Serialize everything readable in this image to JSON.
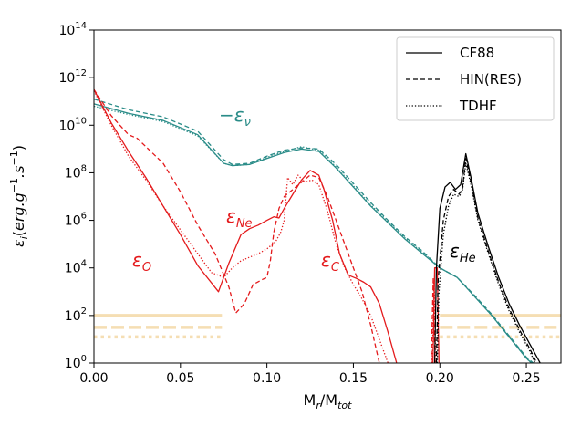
{
  "chart_data": {
    "type": "line",
    "xlabel": "M_r/M_tot",
    "ylabel": "ε_i(erg.g^-1.s^-1)",
    "xlim": [
      0.0,
      0.27
    ],
    "ylim_log10": [
      0,
      14
    ],
    "xticks": [
      0.0,
      0.05,
      0.1,
      0.15,
      0.2,
      0.25
    ],
    "xtick_labels": [
      "0.00",
      "0.05",
      "0.10",
      "0.15",
      "0.20",
      "0.25"
    ],
    "yticks_log10": [
      0,
      2,
      4,
      6,
      8,
      10,
      12,
      14
    ],
    "ytick_base": "10",
    "ytick_exponents": [
      "0",
      "2",
      "4",
      "6",
      "8",
      "10",
      "12",
      "14"
    ],
    "legend": {
      "position": "upper-right",
      "entries": [
        {
          "label": "CF88",
          "style": "solid"
        },
        {
          "label": "HIN(RES)",
          "style": "dashed"
        },
        {
          "label": "TDHF",
          "style": "dotted"
        }
      ]
    },
    "colors": {
      "neutrino": "#2a8c88",
      "oxygen": "#e41a1c",
      "neon": "#e41a1c",
      "carbon": "#e41a1c",
      "helium": "#000000",
      "threshold": "#f5deb3"
    },
    "annotations": [
      {
        "id": "nu",
        "label": "−ε",
        "sub": "ν",
        "color": "#2a8c88"
      },
      {
        "id": "ne",
        "label": "ε",
        "sub": "Ne",
        "color": "#e41a1c"
      },
      {
        "id": "o",
        "label": "ε",
        "sub": "O",
        "color": "#e41a1c"
      },
      {
        "id": "c",
        "label": "ε",
        "sub": "C",
        "color": "#e41a1c"
      },
      {
        "id": "he",
        "label": "ε",
        "sub": "He",
        "color": "#000000"
      }
    ],
    "thresholds": [
      {
        "style": "solid",
        "log10_y": 2.0,
        "segments": [
          [
            0.0,
            0.074
          ],
          [
            0.2,
            0.27
          ]
        ]
      },
      {
        "style": "dashed",
        "log10_y": 1.5,
        "segments": [
          [
            0.0,
            0.074
          ],
          [
            0.2,
            0.27
          ]
        ]
      },
      {
        "style": "dotted",
        "log10_y": 1.1,
        "segments": [
          [
            0.0,
            0.074
          ],
          [
            0.2,
            0.27
          ]
        ]
      }
    ],
    "series": [
      {
        "name": "neutrino CF88",
        "group": "neutrino",
        "style": "solid",
        "points": [
          [
            0,
            10.9
          ],
          [
            0.02,
            10.5
          ],
          [
            0.04,
            10.2
          ],
          [
            0.06,
            9.6
          ],
          [
            0.075,
            8.4
          ],
          [
            0.08,
            8.3
          ],
          [
            0.09,
            8.35
          ],
          [
            0.1,
            8.6
          ],
          [
            0.11,
            8.85
          ],
          [
            0.12,
            9.0
          ],
          [
            0.13,
            8.9
          ],
          [
            0.14,
            8.2
          ],
          [
            0.15,
            7.4
          ],
          [
            0.16,
            6.6
          ],
          [
            0.17,
            5.9
          ],
          [
            0.18,
            5.2
          ],
          [
            0.19,
            4.6
          ],
          [
            0.2,
            4.0
          ],
          [
            0.21,
            3.6
          ],
          [
            0.22,
            2.8
          ],
          [
            0.23,
            2.0
          ],
          [
            0.24,
            1.1
          ],
          [
            0.25,
            0.2
          ],
          [
            0.253,
            0.0
          ]
        ]
      },
      {
        "name": "neutrino HIN(RES)",
        "group": "neutrino",
        "style": "dashed",
        "points": [
          [
            0,
            11.1
          ],
          [
            0.02,
            10.65
          ],
          [
            0.04,
            10.35
          ],
          [
            0.06,
            9.75
          ],
          [
            0.075,
            8.55
          ],
          [
            0.08,
            8.35
          ],
          [
            0.09,
            8.4
          ],
          [
            0.1,
            8.7
          ],
          [
            0.11,
            8.95
          ],
          [
            0.12,
            9.05
          ],
          [
            0.13,
            9.0
          ],
          [
            0.14,
            8.35
          ],
          [
            0.15,
            7.55
          ],
          [
            0.16,
            6.75
          ],
          [
            0.17,
            6.0
          ],
          [
            0.18,
            5.3
          ],
          [
            0.19,
            4.7
          ],
          [
            0.2,
            4.0
          ],
          [
            0.21,
            3.6
          ],
          [
            0.22,
            2.85
          ],
          [
            0.23,
            2.05
          ],
          [
            0.24,
            1.15
          ],
          [
            0.25,
            0.25
          ],
          [
            0.254,
            0.0
          ]
        ]
      },
      {
        "name": "neutrino TDHF",
        "group": "neutrino",
        "style": "dotted",
        "points": [
          [
            0,
            10.8
          ],
          [
            0.02,
            10.45
          ],
          [
            0.04,
            10.15
          ],
          [
            0.06,
            9.55
          ],
          [
            0.075,
            8.4
          ],
          [
            0.08,
            8.3
          ],
          [
            0.09,
            8.35
          ],
          [
            0.1,
            8.65
          ],
          [
            0.11,
            8.9
          ],
          [
            0.12,
            9.1
          ],
          [
            0.13,
            8.95
          ],
          [
            0.14,
            8.25
          ],
          [
            0.15,
            7.45
          ],
          [
            0.16,
            6.65
          ],
          [
            0.17,
            5.95
          ],
          [
            0.18,
            5.25
          ],
          [
            0.19,
            4.65
          ],
          [
            0.2,
            4.0
          ],
          [
            0.21,
            3.6
          ],
          [
            0.22,
            2.8
          ],
          [
            0.23,
            2.0
          ],
          [
            0.24,
            1.1
          ],
          [
            0.25,
            0.2
          ],
          [
            0.253,
            0.0
          ]
        ]
      },
      {
        "name": "O/Ne/C CF88",
        "group": "burning",
        "style": "solid",
        "points": [
          [
            0,
            11.5
          ],
          [
            0.01,
            10.1
          ],
          [
            0.02,
            8.9
          ],
          [
            0.03,
            7.8
          ],
          [
            0.04,
            6.6
          ],
          [
            0.05,
            5.4
          ],
          [
            0.06,
            4.1
          ],
          [
            0.072,
            3.0
          ],
          [
            0.078,
            4.2
          ],
          [
            0.085,
            5.4
          ],
          [
            0.09,
            5.65
          ],
          [
            0.095,
            5.8
          ],
          [
            0.1,
            6.0
          ],
          [
            0.104,
            6.15
          ],
          [
            0.107,
            6.1
          ],
          [
            0.11,
            6.5
          ],
          [
            0.115,
            7.1
          ],
          [
            0.12,
            7.7
          ],
          [
            0.125,
            8.1
          ],
          [
            0.13,
            7.9
          ],
          [
            0.133,
            7.3
          ],
          [
            0.138,
            6.0
          ],
          [
            0.142,
            4.6
          ],
          [
            0.147,
            3.7
          ],
          [
            0.152,
            3.55
          ],
          [
            0.156,
            3.4
          ],
          [
            0.16,
            3.2
          ],
          [
            0.165,
            2.5
          ],
          [
            0.17,
            1.3
          ],
          [
            0.175,
            0.0
          ]
        ]
      },
      {
        "name": "O/Ne/C HIN(RES)",
        "group": "burning",
        "style": "dashed",
        "points": [
          [
            0,
            11.5
          ],
          [
            0.01,
            10.4
          ],
          [
            0.02,
            9.6
          ],
          [
            0.025,
            9.45
          ],
          [
            0.03,
            9.1
          ],
          [
            0.04,
            8.4
          ],
          [
            0.05,
            7.2
          ],
          [
            0.06,
            5.8
          ],
          [
            0.07,
            4.6
          ],
          [
            0.074,
            3.9
          ],
          [
            0.078,
            3.2
          ],
          [
            0.082,
            2.1
          ],
          [
            0.087,
            2.5
          ],
          [
            0.092,
            3.3
          ],
          [
            0.097,
            3.5
          ],
          [
            0.1,
            3.6
          ],
          [
            0.102,
            4.3
          ],
          [
            0.104,
            5.5
          ],
          [
            0.107,
            6.5
          ],
          [
            0.11,
            7.0
          ],
          [
            0.115,
            7.3
          ],
          [
            0.12,
            7.6
          ],
          [
            0.125,
            7.9
          ],
          [
            0.13,
            7.8
          ],
          [
            0.135,
            7.0
          ],
          [
            0.14,
            6.0
          ],
          [
            0.145,
            5.0
          ],
          [
            0.15,
            4.0
          ],
          [
            0.155,
            3.0
          ],
          [
            0.16,
            1.6
          ],
          [
            0.165,
            0.0
          ]
        ]
      },
      {
        "name": "O/Ne/C TDHF",
        "group": "burning",
        "style": "dotted",
        "points": [
          [
            0,
            11.45
          ],
          [
            0.01,
            10.0
          ],
          [
            0.02,
            8.7
          ],
          [
            0.03,
            7.7
          ],
          [
            0.04,
            6.6
          ],
          [
            0.05,
            5.6
          ],
          [
            0.06,
            4.6
          ],
          [
            0.068,
            3.8
          ],
          [
            0.075,
            3.6
          ],
          [
            0.08,
            4.0
          ],
          [
            0.085,
            4.3
          ],
          [
            0.09,
            4.45
          ],
          [
            0.095,
            4.6
          ],
          [
            0.1,
            4.8
          ],
          [
            0.105,
            5.1
          ],
          [
            0.108,
            5.5
          ],
          [
            0.11,
            6.0
          ],
          [
            0.112,
            7.8
          ],
          [
            0.115,
            7.5
          ],
          [
            0.118,
            7.9
          ],
          [
            0.122,
            7.6
          ],
          [
            0.126,
            7.7
          ],
          [
            0.13,
            7.5
          ],
          [
            0.135,
            6.4
          ],
          [
            0.14,
            5.0
          ],
          [
            0.145,
            4.0
          ],
          [
            0.15,
            3.3
          ],
          [
            0.155,
            2.7
          ],
          [
            0.16,
            2.0
          ],
          [
            0.165,
            1.0
          ],
          [
            0.17,
            0.0
          ]
        ]
      },
      {
        "name": "C spike CF88",
        "group": "burning",
        "style": "solid",
        "points": [
          [
            0.196,
            0.0
          ],
          [
            0.197,
            4.0
          ],
          [
            0.1985,
            4.0
          ],
          [
            0.1995,
            0.0
          ]
        ]
      },
      {
        "name": "C spike HIN(RES)",
        "group": "burning",
        "style": "dashed",
        "points": [
          [
            0.195,
            0.0
          ],
          [
            0.1962,
            3.6
          ],
          [
            0.1972,
            0.0
          ]
        ]
      },
      {
        "name": "C spike TDHF",
        "group": "burning",
        "style": "dotted",
        "points": [
          [
            0.1955,
            0.0
          ],
          [
            0.1967,
            3.4
          ],
          [
            0.1978,
            0.0
          ]
        ]
      },
      {
        "name": "He CF88",
        "group": "helium",
        "style": "solid",
        "points": [
          [
            0.197,
            0.0
          ],
          [
            0.198,
            4.0
          ],
          [
            0.2,
            6.5
          ],
          [
            0.203,
            7.4
          ],
          [
            0.206,
            7.6
          ],
          [
            0.209,
            7.3
          ],
          [
            0.212,
            7.5
          ],
          [
            0.215,
            8.8
          ],
          [
            0.218,
            7.8
          ],
          [
            0.222,
            6.3
          ],
          [
            0.228,
            4.9
          ],
          [
            0.234,
            3.6
          ],
          [
            0.24,
            2.5
          ],
          [
            0.246,
            1.6
          ],
          [
            0.252,
            0.8
          ],
          [
            0.258,
            0.0
          ]
        ]
      },
      {
        "name": "He HIN(RES)",
        "group": "helium",
        "style": "dashed",
        "points": [
          [
            0.198,
            0.0
          ],
          [
            0.199,
            3.5
          ],
          [
            0.202,
            6.0
          ],
          [
            0.205,
            7.0
          ],
          [
            0.208,
            7.3
          ],
          [
            0.211,
            7.1
          ],
          [
            0.213,
            7.3
          ],
          [
            0.215,
            8.6
          ],
          [
            0.218,
            7.6
          ],
          [
            0.222,
            6.1
          ],
          [
            0.228,
            4.7
          ],
          [
            0.234,
            3.4
          ],
          [
            0.24,
            2.3
          ],
          [
            0.246,
            1.4
          ],
          [
            0.252,
            0.6
          ],
          [
            0.256,
            0.0
          ]
        ]
      },
      {
        "name": "He TDHF",
        "group": "helium",
        "style": "dotted",
        "points": [
          [
            0.1985,
            0.0
          ],
          [
            0.1995,
            3.0
          ],
          [
            0.202,
            5.4
          ],
          [
            0.205,
            6.6
          ],
          [
            0.208,
            7.1
          ],
          [
            0.211,
            7.0
          ],
          [
            0.213,
            7.2
          ],
          [
            0.215,
            8.4
          ],
          [
            0.218,
            7.5
          ],
          [
            0.222,
            6.0
          ],
          [
            0.228,
            4.6
          ],
          [
            0.234,
            3.3
          ],
          [
            0.24,
            2.2
          ],
          [
            0.246,
            1.3
          ],
          [
            0.252,
            0.5
          ],
          [
            0.255,
            0.0
          ]
        ]
      }
    ]
  }
}
